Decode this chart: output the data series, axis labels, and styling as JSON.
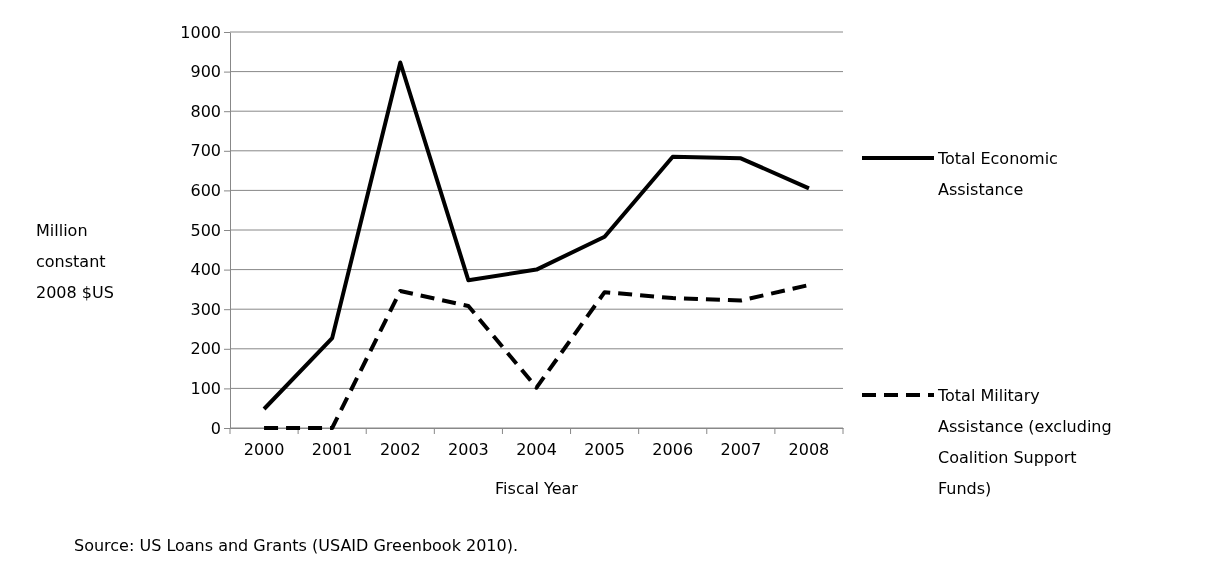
{
  "chart_data": {
    "type": "line",
    "xlabel": "Fiscal Year",
    "ylabel": "Million constant 2008 $US",
    "categories": [
      "2000",
      "2001",
      "2002",
      "2003",
      "2004",
      "2005",
      "2006",
      "2007",
      "2008"
    ],
    "series": [
      {
        "name": "Total Economic Assistance",
        "color": "#000000",
        "line_style": "solid",
        "values": [
          48,
          227,
          923,
          373,
          400,
          483,
          685,
          681,
          605
        ]
      },
      {
        "name": "Total Military Assistance (excluding Coalition Support Funds)",
        "color": "#000000",
        "line_style": "dashed",
        "values": [
          0,
          0,
          346,
          308,
          102,
          343,
          328,
          322,
          361
        ]
      }
    ],
    "ylim": [
      0,
      1000
    ],
    "yticks": [
      0,
      100,
      200,
      300,
      400,
      500,
      600,
      700,
      800,
      900,
      1000
    ],
    "grid": "y",
    "legend": "right",
    "marker": "none",
    "annotations": [
      "Source: US Loans and Grants (USAID Greenbook 2010)."
    ]
  }
}
